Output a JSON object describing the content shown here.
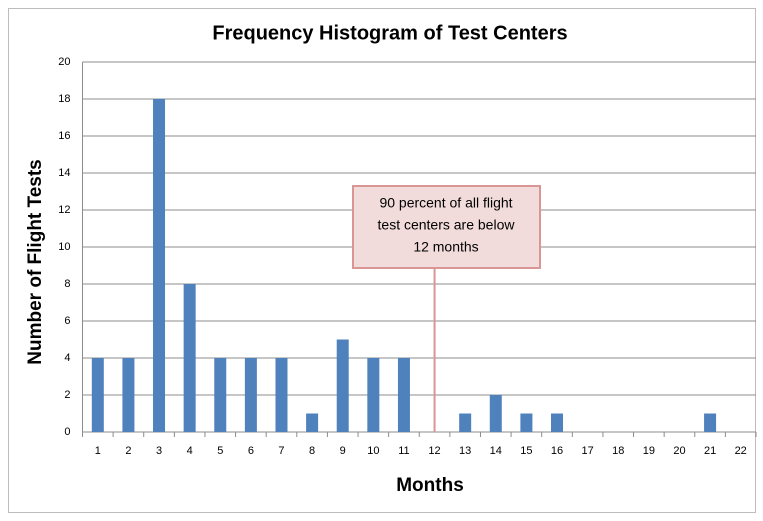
{
  "chart_data": {
    "type": "bar",
    "title": "Frequency Histogram of Test Centers",
    "x_label": "Months",
    "y_label": "Number of Flight Tests",
    "categories": [
      "1",
      "2",
      "3",
      "4",
      "5",
      "6",
      "7",
      "8",
      "9",
      "10",
      "11",
      "12",
      "13",
      "14",
      "15",
      "16",
      "17",
      "18",
      "19",
      "20",
      "21",
      "22"
    ],
    "values": [
      4,
      4,
      18,
      8,
      4,
      4,
      4,
      1,
      5,
      4,
      4,
      0,
      1,
      2,
      1,
      1,
      0,
      0,
      0,
      0,
      1,
      0
    ],
    "color": "#4f81bd",
    "ylim": [
      0,
      20
    ],
    "yticks": [
      0,
      2,
      4,
      6,
      8,
      10,
      12,
      14,
      16,
      18,
      20
    ],
    "grid": true,
    "annotation": {
      "lines": [
        "90 percent of all flight",
        "test centers are below",
        "12 months"
      ]
    }
  }
}
